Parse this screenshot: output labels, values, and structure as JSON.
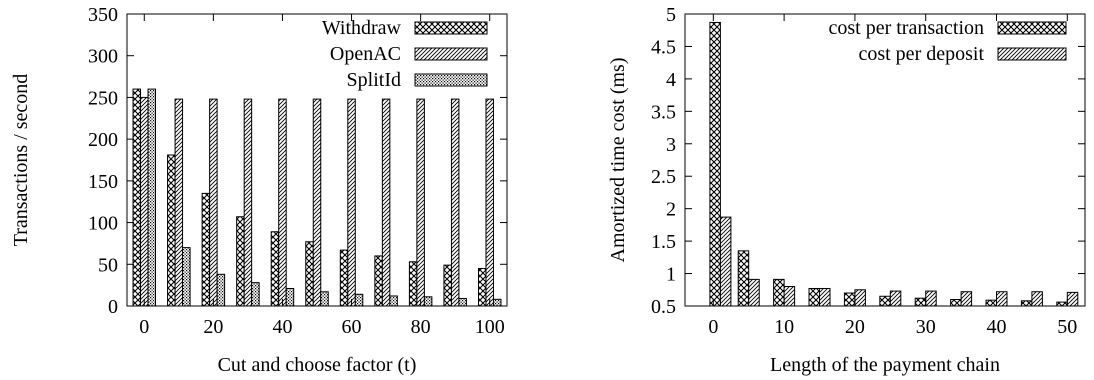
{
  "chart_data": [
    {
      "type": "bar",
      "title": "",
      "xlabel": "Cut and choose factor (t)",
      "ylabel": "Transactions / second",
      "x": [
        0,
        10,
        20,
        30,
        40,
        50,
        60,
        70,
        80,
        90,
        100
      ],
      "xlim": [
        -5,
        105
      ],
      "ylim": [
        0,
        350
      ],
      "xticks": [
        "0",
        "20",
        "40",
        "60",
        "80",
        "100"
      ],
      "xtick_values": [
        0,
        20,
        40,
        60,
        80,
        100
      ],
      "yticks": [
        "0",
        "50",
        "100",
        "150",
        "200",
        "250",
        "300",
        "350"
      ],
      "ytick_values": [
        0,
        50,
        100,
        150,
        200,
        250,
        300,
        350
      ],
      "legend_position": "top-right",
      "grid": false,
      "series": [
        {
          "name": "Withdraw",
          "pattern": "crosshatch",
          "values": [
            260,
            181,
            135,
            107,
            89,
            77,
            67,
            60,
            53,
            49,
            45
          ]
        },
        {
          "name": "OpenAC",
          "pattern": "diagonal",
          "values": [
            250,
            248,
            248,
            248,
            248,
            248,
            248,
            248,
            248,
            248,
            248
          ]
        },
        {
          "name": "SplitId",
          "pattern": "dots",
          "values": [
            260,
            70,
            38,
            28,
            21,
            17,
            14,
            12,
            11,
            9,
            8
          ]
        }
      ]
    },
    {
      "type": "bar",
      "title": "",
      "xlabel": "Length of the payment chain",
      "ylabel": "Amortized time cost (ms)",
      "x": [
        1,
        5,
        10,
        15,
        20,
        25,
        30,
        35,
        40,
        45,
        50
      ],
      "xlim": [
        -4,
        52.5
      ],
      "ylim": [
        0.5,
        5
      ],
      "xticks": [
        "0",
        "10",
        "20",
        "30",
        "40",
        "50"
      ],
      "xtick_values": [
        0,
        10,
        20,
        30,
        40,
        50
      ],
      "yticks": [
        "0.5",
        "1",
        "1.5",
        "2",
        "2.5",
        "3",
        "3.5",
        "4",
        "4.5",
        "5"
      ],
      "ytick_values": [
        0.5,
        1,
        1.5,
        2,
        2.5,
        3,
        3.5,
        4,
        4.5,
        5
      ],
      "legend_position": "top-right",
      "grid": false,
      "series": [
        {
          "name": "cost per transaction",
          "pattern": "crosshatch",
          "values": [
            4.87,
            1.35,
            0.91,
            0.77,
            0.7,
            0.65,
            0.62,
            0.6,
            0.59,
            0.58,
            0.56
          ]
        },
        {
          "name": "cost per deposit",
          "pattern": "diagonal",
          "values": [
            1.87,
            0.91,
            0.8,
            0.77,
            0.75,
            0.73,
            0.73,
            0.72,
            0.72,
            0.72,
            0.71
          ]
        }
      ]
    }
  ]
}
